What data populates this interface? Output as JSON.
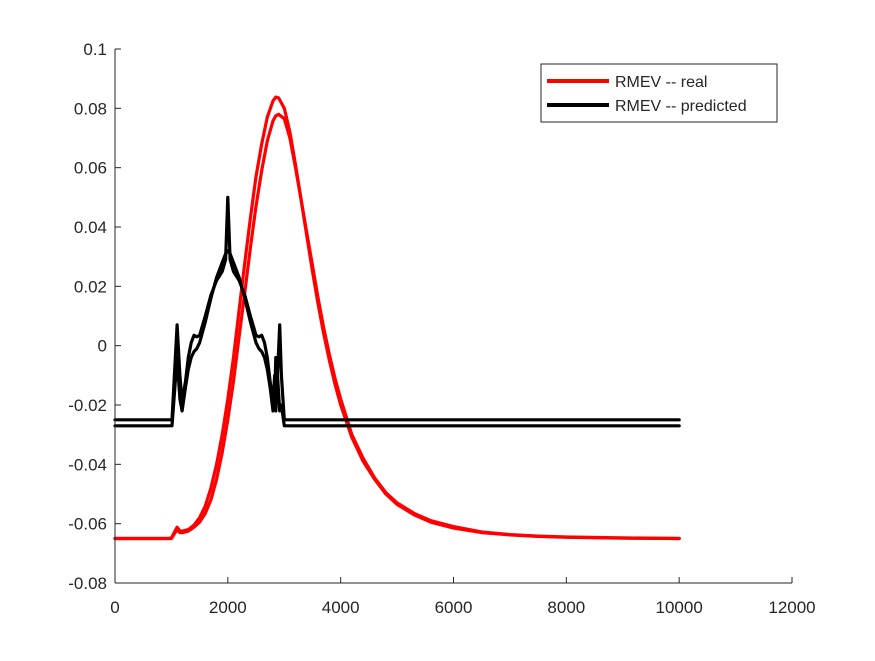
{
  "chart_data": {
    "type": "line",
    "xlim": [
      0,
      12000
    ],
    "ylim": [
      -0.08,
      0.1
    ],
    "xticks": [
      0,
      2000,
      4000,
      6000,
      8000,
      10000,
      12000
    ],
    "xtick_labels": [
      "0",
      "2000",
      "4000",
      "6000",
      "8000",
      "10000",
      "12000"
    ],
    "yticks": [
      -0.08,
      -0.06,
      -0.04,
      -0.02,
      0,
      0.02,
      0.04,
      0.06,
      0.08,
      0.1
    ],
    "ytick_labels": [
      "-0.08",
      "-0.06",
      "-0.04",
      "-0.02",
      "0",
      "0.02",
      "0.04",
      "0.06",
      "0.08",
      "0.1"
    ],
    "grid": false,
    "legend_position": "top-right",
    "legend": [
      {
        "label": "RMEV -- real",
        "color": "#ff0000"
      },
      {
        "label": "RMEV -- predicted",
        "color": "#000000"
      }
    ],
    "series": [
      {
        "name": "RMEV -- real",
        "color": "#ff0000",
        "x": [
          0,
          950,
          1000,
          1050,
          1100,
          1150,
          1200,
          1300,
          1400,
          1500,
          1600,
          1700,
          1800,
          1900,
          2000,
          2100,
          2200,
          2300,
          2400,
          2500,
          2600,
          2700,
          2800,
          2850,
          2900,
          3000,
          3100,
          3200,
          3300,
          3400,
          3500,
          3600,
          3700,
          3800,
          3900,
          4000,
          4200,
          4400,
          4600,
          4800,
          5000,
          5300,
          5600,
          6000,
          6500,
          7000,
          7500,
          8000,
          9000,
          10000
        ],
        "y": [
          -0.065,
          -0.065,
          -0.0648,
          -0.063,
          -0.0612,
          -0.0625,
          -0.0625,
          -0.062,
          -0.0605,
          -0.058,
          -0.054,
          -0.048,
          -0.04,
          -0.03,
          -0.018,
          -0.004,
          0.012,
          0.028,
          0.043,
          0.057,
          0.068,
          0.077,
          0.0825,
          0.0838,
          0.0835,
          0.08,
          0.072,
          0.061,
          0.049,
          0.037,
          0.025,
          0.014,
          0.004,
          -0.005,
          -0.013,
          -0.02,
          -0.031,
          -0.039,
          -0.045,
          -0.05,
          -0.0535,
          -0.057,
          -0.0595,
          -0.0615,
          -0.063,
          -0.0638,
          -0.0643,
          -0.0646,
          -0.0649,
          -0.065
        ]
      },
      {
        "color": "#ff0000",
        "x": [
          0,
          950,
          1000,
          1050,
          1100,
          1150,
          1200,
          1300,
          1400,
          1500,
          1600,
          1700,
          1800,
          1900,
          2000,
          2100,
          2200,
          2300,
          2400,
          2500,
          2600,
          2700,
          2800,
          2850,
          2900,
          3000,
          3100,
          3200,
          3300,
          3400,
          3500,
          3600,
          3700,
          3800,
          3900,
          4000,
          4200,
          4400,
          4600,
          4800,
          5000,
          5300,
          5600,
          6000,
          6500,
          7000,
          7500,
          8000,
          9000,
          10000
        ],
        "y": [
          -0.065,
          -0.065,
          -0.065,
          -0.0635,
          -0.062,
          -0.063,
          -0.063,
          -0.0625,
          -0.0612,
          -0.0595,
          -0.0565,
          -0.052,
          -0.045,
          -0.036,
          -0.025,
          -0.012,
          0.003,
          0.018,
          0.033,
          0.047,
          0.059,
          0.069,
          0.0758,
          0.0775,
          0.078,
          0.0765,
          0.07,
          0.06,
          0.049,
          0.038,
          0.027,
          0.016,
          0.006,
          -0.003,
          -0.011,
          -0.018,
          -0.03,
          -0.038,
          -0.0445,
          -0.0495,
          -0.053,
          -0.0565,
          -0.059,
          -0.061,
          -0.0628,
          -0.0637,
          -0.0642,
          -0.0645,
          -0.0648,
          -0.065
        ]
      },
      {
        "name": "RMEV -- predicted",
        "color": "#000000",
        "x": [
          0,
          1000,
          1010,
          1100,
          1150,
          1190,
          1250,
          1300,
          1350,
          1400,
          1450,
          1500,
          1600,
          1700,
          1800,
          1900,
          1960,
          2000,
          2040,
          2100,
          2200,
          2300,
          2400,
          2500,
          2550,
          2600,
          2650,
          2700,
          2750,
          2800,
          2830,
          2850,
          2880,
          2920,
          2950,
          3000,
          3050,
          10000
        ],
        "y": [
          -0.025,
          -0.025,
          -0.025,
          0.007,
          -0.01,
          -0.019,
          -0.012,
          -0.004,
          0.001,
          0.0035,
          0.003,
          0.0035,
          0.01,
          0.017,
          0.022,
          0.025,
          0.029,
          0.05,
          0.029,
          0.025,
          0.022,
          0.017,
          0.01,
          0.0035,
          0.003,
          0.0035,
          0.001,
          -0.004,
          -0.012,
          -0.019,
          -0.01,
          -0.022,
          -0.01,
          0.007,
          -0.01,
          -0.025,
          -0.025,
          -0.025
        ]
      },
      {
        "color": "#000000",
        "x": [
          0,
          1000,
          1010,
          1100,
          1150,
          1190,
          1250,
          1300,
          1350,
          1400,
          1450,
          1500,
          1600,
          1700,
          1800,
          1900,
          1960,
          2000,
          2040,
          2100,
          2200,
          2300,
          2400,
          2500,
          2550,
          2600,
          2650,
          2700,
          2750,
          2800,
          2830,
          2850,
          2880,
          2920,
          2950,
          3000,
          3050,
          10000
        ],
        "y": [
          -0.027,
          -0.027,
          -0.027,
          -0.004,
          -0.018,
          -0.022,
          -0.014,
          -0.008,
          -0.004,
          -0.002,
          -0.001,
          0.001,
          0.008,
          0.016,
          0.023,
          0.028,
          0.031,
          0.032,
          0.031,
          0.028,
          0.023,
          0.016,
          0.008,
          0.001,
          -0.001,
          -0.002,
          -0.004,
          -0.008,
          -0.014,
          -0.022,
          -0.018,
          -0.004,
          -0.01,
          -0.022,
          -0.02,
          -0.027,
          -0.027,
          -0.027
        ]
      }
    ]
  }
}
